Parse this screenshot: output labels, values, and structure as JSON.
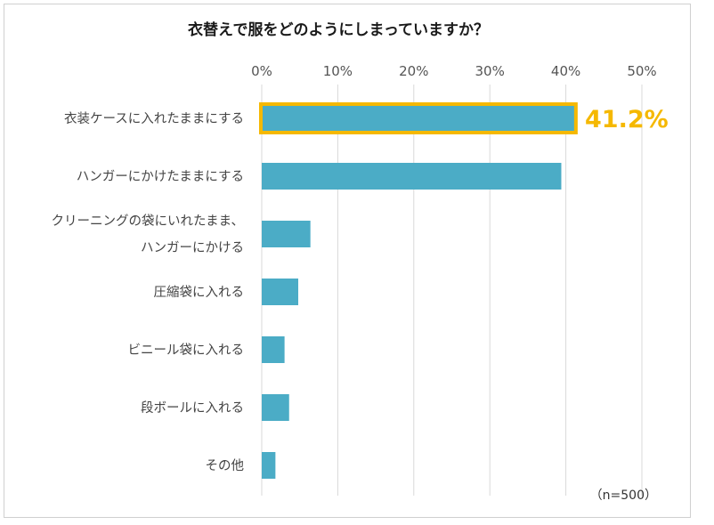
{
  "chart_data": {
    "type": "bar",
    "orientation": "horizontal",
    "title": "衣替えで服をどのようにしまっていますか？",
    "categories": [
      [
        "衣装ケースに入れたままにする"
      ],
      [
        "ハンガーにかけたままにする"
      ],
      [
        "クリーニングの袋にいれたまま、",
        "ハンガーにかける"
      ],
      [
        "圧縮袋に入れる"
      ],
      [
        "ビニール袋に入れる"
      ],
      [
        "段ボールに入れる"
      ],
      [
        "その他"
      ]
    ],
    "values": [
      41.2,
      39.4,
      6.4,
      4.8,
      3.0,
      3.6,
      1.8
    ],
    "xlim": [
      0,
      50
    ],
    "xticks": [
      "0%",
      "10%",
      "20%",
      "30%",
      "40%",
      "50%"
    ],
    "grid": true,
    "highlight": {
      "index": 0,
      "label": "41.2%"
    },
    "note": "（n=500）",
    "colors": {
      "bar": "#4bacc6",
      "highlight": "#f5b800",
      "grid": "#d9d9d9"
    }
  }
}
